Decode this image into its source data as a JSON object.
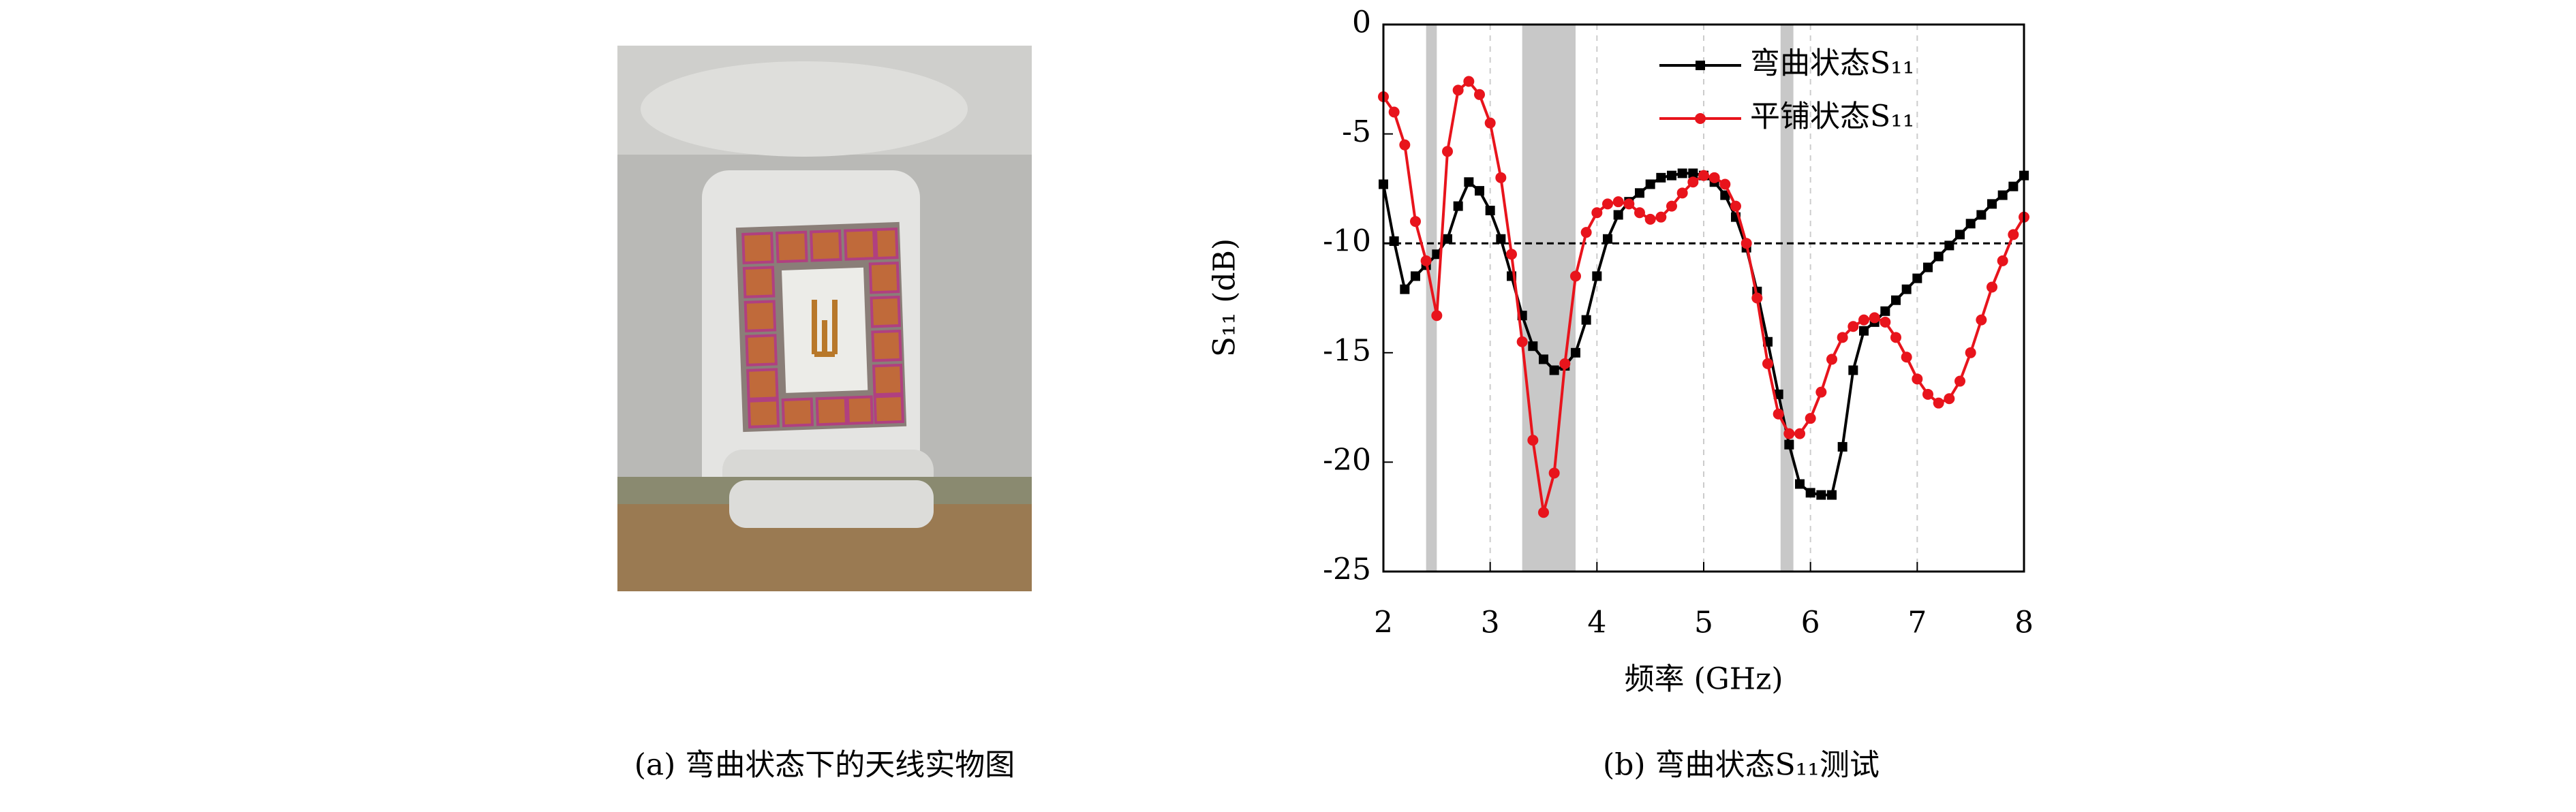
{
  "panel_a": {
    "caption": "(a) 弯曲状态下的天线实物图"
  },
  "chart_data": {
    "type": "line",
    "caption": "(b) 弯曲状态S₁₁测试",
    "xlabel": "频率 (GHz)",
    "ylabel": "S₁₁ (dB)",
    "x": [
      2.0,
      2.1,
      2.2,
      2.3,
      2.4,
      2.5,
      2.6,
      2.7,
      2.8,
      2.9,
      3.0,
      3.1,
      3.2,
      3.3,
      3.4,
      3.5,
      3.6,
      3.7,
      3.8,
      3.9,
      4.0,
      4.1,
      4.2,
      4.3,
      4.4,
      4.5,
      4.6,
      4.7,
      4.8,
      4.9,
      5.0,
      5.1,
      5.2,
      5.3,
      5.4,
      5.5,
      5.6,
      5.7,
      5.8,
      5.9,
      6.0,
      6.1,
      6.2,
      6.3,
      6.4,
      6.5,
      6.6,
      6.7,
      6.8,
      6.9,
      7.0,
      7.1,
      7.2,
      7.3,
      7.4,
      7.5,
      7.6,
      7.7,
      7.8,
      7.9,
      8.0
    ],
    "series": [
      {
        "name": "弯曲状态S₁₁",
        "color": "#000000",
        "marker": "square",
        "values": [
          -7.3,
          -9.9,
          -12.1,
          -11.5,
          -11.0,
          -10.5,
          -9.8,
          -8.3,
          -7.2,
          -7.6,
          -8.5,
          -9.8,
          -11.5,
          -13.3,
          -14.7,
          -15.3,
          -15.8,
          -15.6,
          -15.0,
          -13.5,
          -11.5,
          -9.8,
          -8.7,
          -8.1,
          -7.7,
          -7.3,
          -7.0,
          -6.9,
          -6.8,
          -6.8,
          -6.9,
          -7.2,
          -7.8,
          -8.8,
          -10.2,
          -12.2,
          -14.5,
          -16.9,
          -19.2,
          -21.0,
          -21.4,
          -21.5,
          -21.5,
          -19.3,
          -15.8,
          -14.0,
          -13.6,
          -13.1,
          -12.6,
          -12.1,
          -11.6,
          -11.1,
          -10.6,
          -10.1,
          -9.6,
          -9.1,
          -8.7,
          -8.2,
          -7.8,
          -7.4,
          -6.9
        ]
      },
      {
        "name": "平铺状态S₁₁",
        "color": "#e8141c",
        "marker": "circle",
        "values": [
          -3.3,
          -4.0,
          -5.5,
          -9.0,
          -10.8,
          -13.3,
          -5.8,
          -3.0,
          -2.6,
          -3.2,
          -4.5,
          -7.0,
          -10.5,
          -14.5,
          -19.0,
          -22.3,
          -20.5,
          -15.5,
          -11.5,
          -9.5,
          -8.6,
          -8.2,
          -8.1,
          -8.2,
          -8.6,
          -8.9,
          -8.8,
          -8.3,
          -7.7,
          -7.2,
          -6.9,
          -7.0,
          -7.3,
          -8.3,
          -10.0,
          -12.5,
          -15.5,
          -17.8,
          -18.7,
          -18.7,
          -18.0,
          -16.8,
          -15.3,
          -14.3,
          -13.8,
          -13.5,
          -13.4,
          -13.6,
          -14.3,
          -15.2,
          -16.2,
          -16.9,
          -17.3,
          -17.1,
          -16.3,
          -15.0,
          -13.5,
          -12.0,
          -10.8,
          -9.6,
          -8.8
        ]
      }
    ],
    "xlim": [
      2,
      8
    ],
    "xticks": [
      2,
      3,
      4,
      5,
      6,
      7,
      8
    ],
    "ylim": [
      -25,
      0
    ],
    "yticks": [
      0,
      -5,
      -10,
      -15,
      -20,
      -25
    ],
    "grid": true,
    "legend": "upper-right",
    "ref_line": -10,
    "ref_color": "#000000",
    "shaded_bands": [
      [
        2.4,
        2.5
      ],
      [
        3.3,
        3.8
      ],
      [
        5.72,
        5.84
      ]
    ],
    "band_color": "#c8c8c8"
  }
}
